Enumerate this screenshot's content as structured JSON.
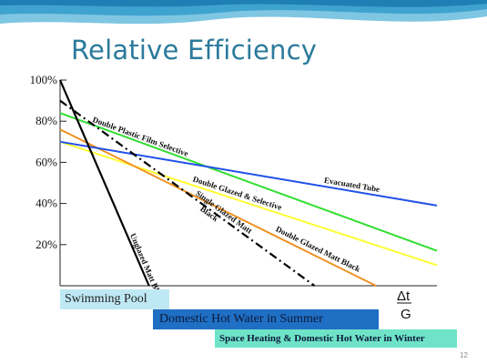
{
  "slide": {
    "title": "Relative Efficiency",
    "page_number": "12"
  },
  "bands": [
    {
      "label": "Swimming Pool",
      "color": "#bfe8f5"
    },
    {
      "label": "Domestic Hot Water in Summer",
      "color": "#1f6fc4"
    },
    {
      "label": "Space Heating & Domestic Hot Water in Winter",
      "color": "#6ee3c8"
    }
  ],
  "chart_data": {
    "type": "line",
    "title": "",
    "xlabel": "Δt / G",
    "xlabel_numerator": "Δt",
    "xlabel_denominator": "G",
    "ylabel": "",
    "xlim": [
      0,
      1
    ],
    "ylim": [
      0,
      100
    ],
    "y_ticks": [
      20,
      40,
      60,
      80,
      100
    ],
    "y_tick_labels": [
      "20%",
      "40%",
      "60%",
      "80%",
      "100%"
    ],
    "grid": false,
    "legend": "none",
    "series": [
      {
        "name": "Unglazed Matt Black",
        "color": "#000000",
        "style": "solid",
        "x": [
          0,
          0.236
        ],
        "y": [
          100,
          0
        ]
      },
      {
        "name": "Single Glazed Matt Black",
        "color": "#000000",
        "style": "dashdot",
        "x": [
          0,
          0.675
        ],
        "y": [
          90,
          0
        ]
      },
      {
        "name": "Double Glazed Matt Black",
        "color": "#f0901e",
        "style": "solid",
        "x": [
          0,
          0.838
        ],
        "y": [
          76,
          0
        ]
      },
      {
        "name": "Double Glazed & Selective",
        "color": "#ffff33",
        "style": "solid",
        "x": [
          0,
          1
        ],
        "y": [
          70,
          10
        ]
      },
      {
        "name": "Double Plastic Film Selective",
        "color": "#33dd33",
        "style": "solid",
        "x": [
          0,
          1
        ],
        "y": [
          84,
          17
        ]
      },
      {
        "name": "Evacuated Tube",
        "color": "#2050e8",
        "style": "solid",
        "x": [
          0,
          1
        ],
        "y": [
          70,
          39
        ]
      }
    ]
  }
}
